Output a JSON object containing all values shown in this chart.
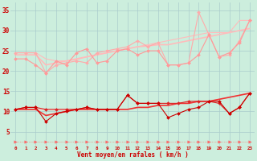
{
  "bg_color": "#cceedd",
  "grid_color": "#aacccc",
  "xlabel": "Vent moyen/en rafales ( km/h )",
  "xlabel_color": "#cc0000",
  "tick_color": "#cc0000",
  "x_values": [
    0,
    1,
    2,
    3,
    4,
    5,
    6,
    7,
    8,
    9,
    10,
    11,
    12,
    13,
    14,
    15,
    16,
    17,
    18,
    19,
    20,
    21,
    22,
    23
  ],
  "ylim": [
    1.5,
    37
  ],
  "xlim": [
    -0.5,
    23.5
  ],
  "yticks": [
    5,
    10,
    15,
    20,
    25,
    30,
    35
  ],
  "lines": [
    {
      "y": [
        24.5,
        24.5,
        24.5,
        23.0,
        22.5,
        22.5,
        22.8,
        23.5,
        24.0,
        24.5,
        25.0,
        25.5,
        26.0,
        26.5,
        27.0,
        27.5,
        28.0,
        28.5,
        29.0,
        29.5,
        29.5,
        29.5,
        32.5,
        32.5
      ],
      "color": "#ffbbbb",
      "lw": 0.8,
      "marker": null,
      "zorder": 2
    },
    {
      "y": [
        24.5,
        24.5,
        24.5,
        19.5,
        21.5,
        22.0,
        22.5,
        22.0,
        24.5,
        25.0,
        25.5,
        26.0,
        27.5,
        26.0,
        27.0,
        21.5,
        21.5,
        22.0,
        34.5,
        29.0,
        23.5,
        24.0,
        27.5,
        32.5
      ],
      "color": "#ffaaaa",
      "lw": 0.8,
      "marker": "D",
      "markersize": 2.0,
      "zorder": 3
    },
    {
      "y": [
        24.0,
        24.0,
        24.0,
        21.5,
        22.0,
        22.5,
        23.0,
        23.5,
        24.0,
        24.5,
        25.0,
        25.5,
        26.0,
        26.2,
        26.5,
        26.5,
        27.0,
        27.5,
        28.0,
        28.5,
        29.0,
        29.5,
        30.0,
        30.5
      ],
      "color": "#ffbbbb",
      "lw": 1.2,
      "marker": null,
      "zorder": 2
    },
    {
      "y": [
        23.0,
        23.0,
        21.5,
        19.5,
        22.5,
        21.5,
        24.5,
        25.5,
        22.0,
        22.5,
        25.0,
        25.5,
        24.0,
        25.0,
        25.0,
        21.5,
        21.5,
        22.0,
        24.0,
        29.0,
        23.5,
        24.5,
        27.0,
        32.5
      ],
      "color": "#ff9999",
      "lw": 0.8,
      "marker": "D",
      "markersize": 2.0,
      "zorder": 3
    },
    {
      "y": [
        10.5,
        10.5,
        10.5,
        10.5,
        10.5,
        10.5,
        10.5,
        10.5,
        10.5,
        10.5,
        10.5,
        10.5,
        11.0,
        11.0,
        11.5,
        11.5,
        12.0,
        12.0,
        12.5,
        12.5,
        13.0,
        13.5,
        14.0,
        14.5
      ],
      "color": "#ffbbbb",
      "lw": 0.8,
      "marker": null,
      "zorder": 2
    },
    {
      "y": [
        10.5,
        11.0,
        11.0,
        10.5,
        10.5,
        10.5,
        10.5,
        11.0,
        10.5,
        10.5,
        10.5,
        14.0,
        12.0,
        12.0,
        12.0,
        12.0,
        12.0,
        12.5,
        12.5,
        12.5,
        12.0,
        9.5,
        11.0,
        14.5
      ],
      "color": "#dd2222",
      "lw": 0.8,
      "marker": "D",
      "markersize": 2.0,
      "zorder": 4
    },
    {
      "y": [
        10.5,
        10.5,
        10.5,
        9.0,
        9.5,
        10.0,
        10.5,
        10.5,
        10.5,
        10.5,
        10.5,
        10.5,
        11.0,
        11.0,
        11.5,
        11.5,
        12.0,
        12.0,
        12.5,
        12.5,
        13.0,
        13.5,
        14.0,
        14.5
      ],
      "color": "#ee3333",
      "lw": 1.2,
      "marker": null,
      "zorder": 2
    },
    {
      "y": [
        10.5,
        11.0,
        11.0,
        7.5,
        9.5,
        10.0,
        10.5,
        11.0,
        10.5,
        10.5,
        10.5,
        14.0,
        12.0,
        12.0,
        12.0,
        8.5,
        9.5,
        10.5,
        11.0,
        12.5,
        12.5,
        9.5,
        11.0,
        14.5
      ],
      "color": "#cc0000",
      "lw": 0.8,
      "marker": "D",
      "markersize": 2.0,
      "zorder": 4
    },
    {
      "y": [
        2.5,
        2.5,
        2.5,
        2.5,
        2.5,
        2.5,
        2.5,
        2.5,
        2.5,
        2.5,
        2.5,
        2.5,
        2.5,
        2.5,
        2.5,
        2.5,
        2.5,
        2.5,
        2.5,
        2.5,
        2.5,
        2.5,
        2.5,
        2.5
      ],
      "color": "#ff6666",
      "lw": 0.5,
      "marker": ">",
      "markersize": 2.5,
      "zorder": 3,
      "linestyle": "dotted"
    }
  ]
}
